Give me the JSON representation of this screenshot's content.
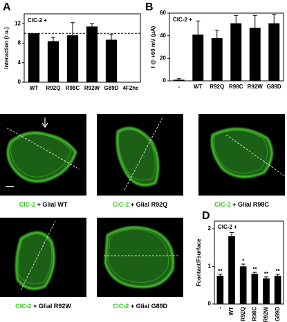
{
  "chart_data": [
    {
      "type": "bar",
      "label": "A",
      "title": "ClC-2 +",
      "y_label": "Interaction (r.u.)",
      "categories": [
        "WT",
        "R92Q",
        "R98C",
        "R92W",
        "G89D",
        "4F2hc"
      ],
      "values": [
        10,
        8.4,
        9.6,
        11.4,
        8.7,
        0
      ],
      "errors": [
        0,
        0.8,
        2.6,
        0.6,
        1.1,
        0
      ],
      "ylim": [
        0,
        14
      ],
      "yticks": [
        0,
        4,
        8,
        12
      ],
      "reference_line": 10,
      "color": "#000000"
    },
    {
      "type": "bar",
      "label": "B",
      "title": "ClC-2 +",
      "y_label": "I @ +60 mV (µA)",
      "categories": [
        "-",
        "WT",
        "R92Q",
        "R98C",
        "R92W",
        "G89D"
      ],
      "values": [
        1,
        41,
        38,
        51,
        47,
        51
      ],
      "errors": [
        1,
        12,
        7,
        7,
        11,
        8
      ],
      "ylim": [
        0,
        60
      ],
      "yticks": [
        0,
        20,
        40,
        60
      ],
      "color": "#000000"
    },
    {
      "type": "bar",
      "label": "D",
      "title": "ClC-2 +",
      "y_label": "Fcontact/Fsurface",
      "categories": [
        "-",
        "WT",
        "R92Q",
        "R98C",
        "R92W",
        "G89D"
      ],
      "values": [
        0.75,
        1.8,
        1.0,
        0.8,
        0.68,
        0.75
      ],
      "errors": [
        0.04,
        0.1,
        0.06,
        0.04,
        0.04,
        0.04
      ],
      "annotations": [
        "**",
        null,
        "*",
        "**",
        "**",
        "**"
      ],
      "ylim": [
        0,
        2.2
      ],
      "yticks": [
        0,
        1,
        2
      ],
      "color": "#000000",
      "rotate_x_labels": true
    }
  ],
  "images": {
    "label": "C",
    "panels": [
      {
        "protein": "ClC-2",
        "caption": " + Glial WT"
      },
      {
        "protein": "ClC-2",
        "caption": " + Glial R92Q"
      },
      {
        "protein": "ClC-2",
        "caption": " + Glial R98C"
      },
      {
        "protein": "ClC-2",
        "caption": " + Glial R92W"
      },
      {
        "protein": "ClC-2",
        "caption": " + Glial G89D"
      }
    ]
  }
}
